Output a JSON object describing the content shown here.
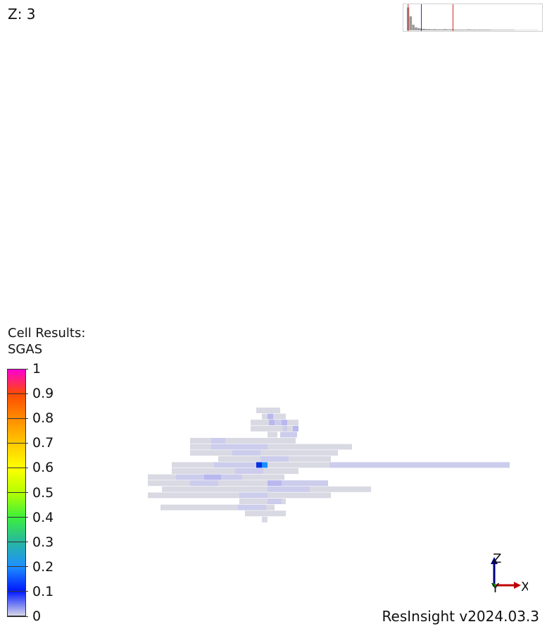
{
  "view": {
    "z_label": "Z: 3",
    "version": "ResInsight v2024.03.3"
  },
  "legend": {
    "title_line1": "Cell Results:",
    "title_line2": "SGAS",
    "min": 0,
    "max": 1,
    "ticks": [
      "0",
      "0.1",
      "0.2",
      "0.3",
      "0.4",
      "0.5",
      "0.6",
      "0.7",
      "0.8",
      "0.9",
      "1"
    ],
    "colors": [
      "#d6d6e8",
      "#0018ff",
      "#1e90ff",
      "#28b7a0",
      "#3cf03c",
      "#b4ff00",
      "#ffff00",
      "#ffc800",
      "#ff8c00",
      "#ff4b00",
      "#ff00d2"
    ]
  },
  "histogram": {
    "bars": [
      0.9,
      0.55,
      0.22,
      0.12,
      0.09,
      0.07,
      0.06,
      0.05,
      0.05,
      0.04,
      0.05,
      0.04,
      0.04,
      0.04,
      0.05,
      0.04,
      0.04,
      0.04,
      0.03,
      0.03,
      0.03,
      0.03,
      0.03,
      0.04,
      0.03,
      0.03,
      0.03,
      0.03,
      0.03,
      0.03,
      0.03,
      0.03,
      0.02,
      0.02,
      0.02,
      0.02,
      0.02,
      0.02,
      0.02,
      0.02,
      0.02,
      0.01,
      0.01,
      0.01,
      0.01,
      0.01,
      0.01,
      0.01,
      0.01,
      0.01
    ],
    "markers": [
      {
        "value": 0.01,
        "color": "#d02020"
      },
      {
        "value": 0.11,
        "color": "#2020d0"
      },
      {
        "value": 0.35,
        "color": "#d02020"
      }
    ]
  },
  "axes": {
    "z": "Z",
    "y": "Y",
    "x": "X",
    "colors": {
      "z": "#000080",
      "y": "#00a000",
      "x": "#c00000"
    }
  },
  "grid_cells": {
    "note_colors": {
      "base": "#d9d9e3",
      "light": "#ccccec",
      "mid": "#b8b8ee",
      "strong": "#0030e0",
      "cyan": "#1a8fff"
    },
    "rows": [
      {
        "y": 0,
        "segments": [
          [
            164,
            34,
            "base"
          ]
        ]
      },
      {
        "y": 1,
        "segments": [
          [
            172,
            8,
            "base"
          ],
          [
            180,
            8,
            "mid"
          ],
          [
            188,
            18,
            "base"
          ]
        ]
      },
      {
        "y": 2,
        "segments": [
          [
            156,
            26,
            "base"
          ],
          [
            182,
            8,
            "mid"
          ],
          [
            190,
            10,
            "light"
          ],
          [
            200,
            8,
            "mid"
          ],
          [
            208,
            16,
            "base"
          ]
        ]
      },
      {
        "y": 3,
        "segments": [
          [
            156,
            26,
            "base"
          ],
          [
            182,
            20,
            "base"
          ],
          [
            202,
            6,
            "light"
          ],
          [
            208,
            8,
            "base"
          ],
          [
            216,
            8,
            "mid"
          ]
        ]
      },
      {
        "y": 4,
        "segments": [
          [
            180,
            14,
            "base"
          ],
          [
            198,
            24,
            "light"
          ]
        ]
      },
      {
        "y": 5,
        "segments": [
          [
            70,
            30,
            "base"
          ],
          [
            100,
            20,
            "light"
          ],
          [
            120,
            60,
            "base"
          ],
          [
            180,
            40,
            "base"
          ]
        ]
      },
      {
        "y": 6,
        "segments": [
          [
            70,
            30,
            "base"
          ],
          [
            100,
            30,
            "light"
          ],
          [
            130,
            50,
            "light"
          ],
          [
            180,
            120,
            "base"
          ]
        ]
      },
      {
        "y": 7,
        "segments": [
          [
            70,
            60,
            "base"
          ],
          [
            130,
            40,
            "light"
          ],
          [
            170,
            90,
            "base"
          ],
          [
            260,
            20,
            "base"
          ]
        ]
      },
      {
        "y": 8,
        "segments": [
          [
            110,
            60,
            "base"
          ],
          [
            170,
            40,
            "light"
          ],
          [
            210,
            60,
            "base"
          ]
        ]
      },
      {
        "y": 9,
        "segments": [
          [
            44,
            60,
            "base"
          ],
          [
            104,
            60,
            "light"
          ],
          [
            164,
            8,
            "strong"
          ],
          [
            172,
            8,
            "cyan"
          ],
          [
            180,
            40,
            "base"
          ],
          [
            220,
            48,
            "base"
          ],
          [
            268,
            256,
            "light"
          ]
        ]
      },
      {
        "y": 10,
        "segments": [
          [
            44,
            90,
            "base"
          ],
          [
            134,
            40,
            "light"
          ],
          [
            174,
            30,
            "base"
          ],
          [
            204,
            20,
            "base"
          ]
        ]
      },
      {
        "y": 11,
        "segments": [
          [
            10,
            40,
            "base"
          ],
          [
            50,
            40,
            "light"
          ],
          [
            90,
            24,
            "mid"
          ],
          [
            114,
            30,
            "light"
          ],
          [
            144,
            20,
            "base"
          ],
          [
            164,
            40,
            "base"
          ]
        ]
      },
      {
        "y": 12,
        "segments": [
          [
            10,
            60,
            "base"
          ],
          [
            70,
            40,
            "light"
          ],
          [
            110,
            40,
            "base"
          ],
          [
            150,
            30,
            "base"
          ],
          [
            180,
            20,
            "mid"
          ],
          [
            200,
            66,
            "light"
          ]
        ]
      },
      {
        "y": 13,
        "segments": [
          [
            30,
            150,
            "base"
          ],
          [
            180,
            60,
            "light"
          ],
          [
            240,
            87,
            "base"
          ]
        ]
      },
      {
        "y": 14,
        "segments": [
          [
            10,
            130,
            "base"
          ],
          [
            140,
            40,
            "light"
          ],
          [
            180,
            30,
            "base"
          ],
          [
            210,
            60,
            "base"
          ]
        ]
      },
      {
        "y": 15,
        "segments": [
          [
            140,
            40,
            "base"
          ],
          [
            180,
            20,
            "light"
          ],
          [
            200,
            6,
            "base"
          ]
        ]
      },
      {
        "y": 16,
        "segments": [
          [
            28,
            110,
            "base"
          ],
          [
            138,
            40,
            "light"
          ],
          [
            178,
            12,
            "base"
          ]
        ]
      },
      {
        "y": 17,
        "segments": [
          [
            148,
            58,
            "base"
          ]
        ]
      },
      {
        "y": 18,
        "segments": [
          [
            172,
            8,
            "base"
          ]
        ]
      }
    ]
  }
}
